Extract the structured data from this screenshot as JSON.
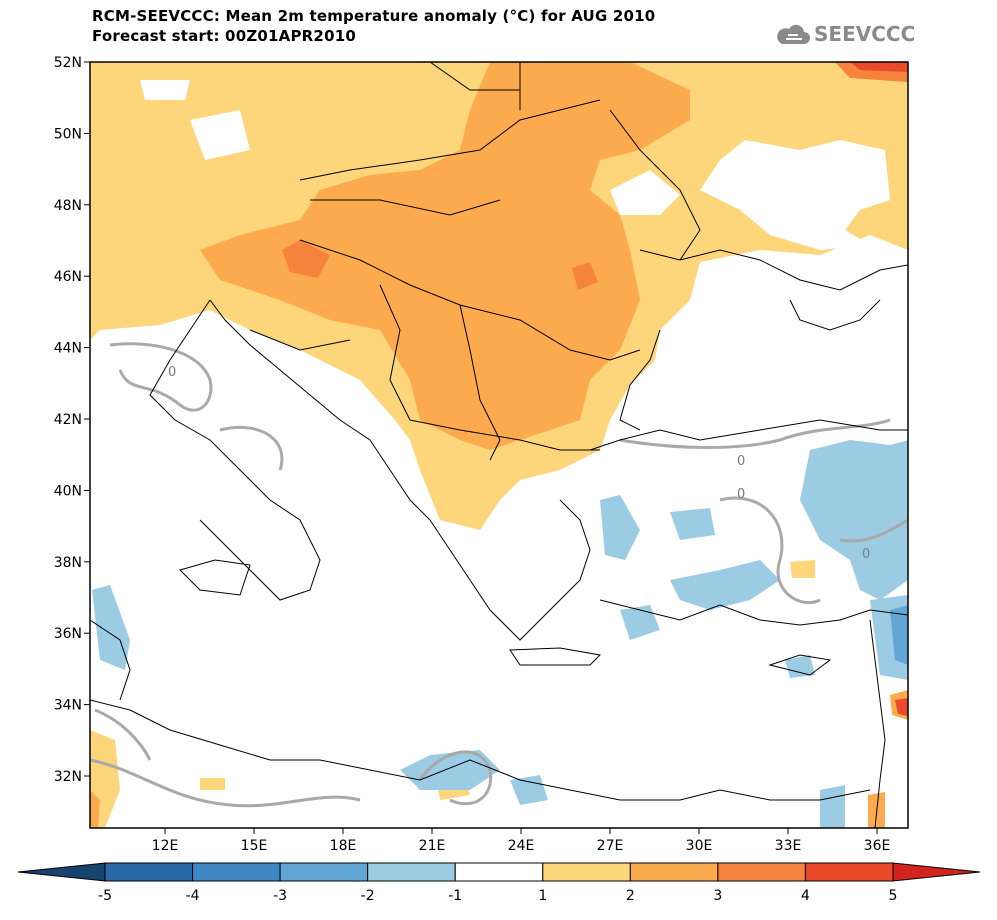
{
  "title": {
    "line1": "RCM-SEEVCCC: Mean 2m temperature anomaly (°C) for AUG 2010",
    "line2": "Forecast start: 00Z01APR2010"
  },
  "logo": {
    "text": "SEEVCCC",
    "icon": "cloud-icon"
  },
  "map": {
    "lat_labels": [
      "52N",
      "50N",
      "48N",
      "46N",
      "44N",
      "42N",
      "40N",
      "38N",
      "36N",
      "34N",
      "32N"
    ],
    "lon_labels": [
      "12E",
      "15E",
      "18E",
      "21E",
      "24E",
      "27E",
      "30E",
      "33E",
      "36E"
    ],
    "contour_labels": [
      "0",
      "0",
      "0",
      "0"
    ]
  },
  "colorbar": {
    "labels": [
      "-5",
      "-4",
      "-3",
      "-2",
      "-1",
      "1",
      "2",
      "3",
      "4",
      "5"
    ],
    "colors": [
      "#2a69a8",
      "#3f86c2",
      "#62a6d6",
      "#9ccbe4",
      "#ffffff",
      "#fdd57a",
      "#fcaa4e",
      "#f6843c",
      "#ec4b2b"
    ],
    "under_color": "#16436f",
    "over_color": "#d2231e"
  },
  "legend_colors": {
    "warm1": "#fdd57a",
    "warm2": "#fcaa4e",
    "warm3": "#f6843c",
    "warm4": "#ec4b2b",
    "cold1": "#9ccbe4",
    "cold2": "#62a6d6",
    "contour": "#a9a9a9"
  }
}
